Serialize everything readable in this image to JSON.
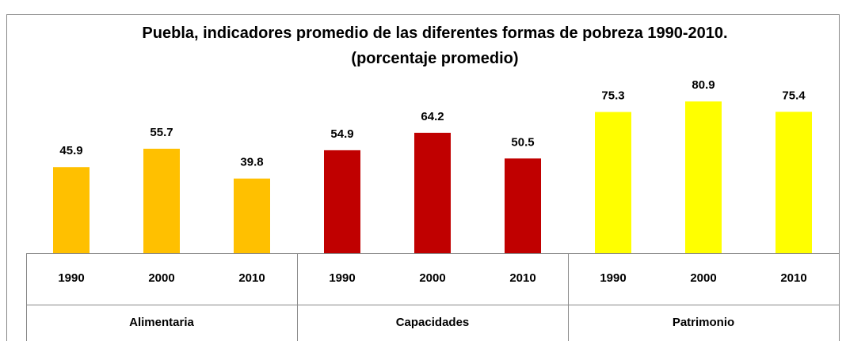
{
  "chart_data": {
    "type": "bar",
    "title": "Puebla, indicadores promedio de las diferentes formas de pobreza 1990-2010. (porcentaje promedio)",
    "groups": [
      {
        "name": "Alimentaria",
        "color": "#FFC000",
        "categories": [
          "1990",
          "2000",
          "2010"
        ],
        "values": [
          45.9,
          55.7,
          39.8
        ]
      },
      {
        "name": "Capacidades",
        "color": "#C00000",
        "categories": [
          "1990",
          "2000",
          "2010"
        ],
        "values": [
          54.9,
          64.2,
          50.5
        ]
      },
      {
        "name": "Patrimonio",
        "color": "#FFFF00",
        "categories": [
          "1990",
          "2000",
          "2010"
        ],
        "values": [
          75.3,
          80.9,
          75.4
        ]
      }
    ]
  }
}
